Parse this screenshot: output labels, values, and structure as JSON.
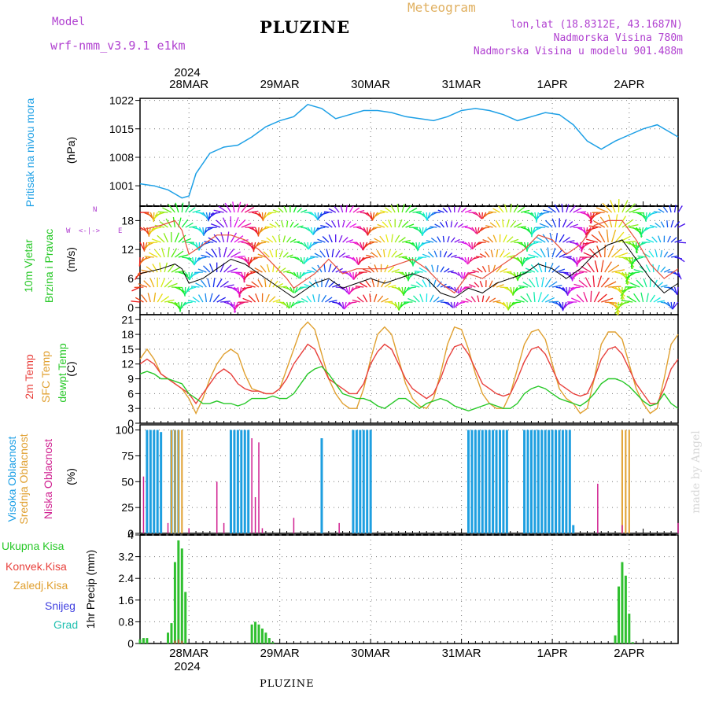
{
  "header": {
    "model_label": "Model",
    "model_name": "wrf-nmm_v3.9.1  e1km",
    "station": "PLUZINE",
    "meteogram_label": "Meteogram",
    "lonlat": "lon,lat (18.8312E, 43.1687N)",
    "elevation": "Nadmorska Visina 780m",
    "model_elevation": "Nadmorska Visina u modelu 901.488m",
    "top_year": "2024",
    "bottom_year": "2024",
    "footer_station": "PLUZINE",
    "watermark": "made by Angel"
  },
  "x_axis": {
    "day_labels": [
      "28MAR",
      "29MAR",
      "30MAR",
      "31MAR",
      "1APR",
      "2APR"
    ]
  },
  "panels": {
    "pressure": {
      "label": "Pritisak na nivou mora",
      "unit": "(hPa)"
    },
    "wind": {
      "label_line1": "10m Vjetar",
      "label_line2": "Brzina i Pravac",
      "unit": "(m/s)",
      "legend_n": "N",
      "legend_e": "E",
      "legend_w": "W",
      "legend_arrows": "<-|->"
    },
    "temp": {
      "label_2m": "2m Temp",
      "label_sfc": "SFC Temp",
      "label_dew": "dewpt Temp",
      "unit": "(C)"
    },
    "cloud": {
      "label_high": "Visoka Oblacnost",
      "label_mid": "Srednja Oblacnost",
      "label_low": "Niska Oblacnost",
      "unit": "(%)"
    },
    "precip": {
      "label_total": "Ukupna Kisa",
      "label_conv": "Konvek.Kisa",
      "label_frz": "Zaledj.Kisa",
      "label_snow": "Snijeg",
      "label_grad": "Grad",
      "unit": "1hr Precip (mm)"
    }
  },
  "colors": {
    "pressure": "#1ea0e6",
    "wind_speed": "#000000",
    "wind_gust": "#e8503c",
    "t2m": "#e8403c",
    "sfc": "#e0a030",
    "dew": "#28c828",
    "high_cloud": "#1e9fe0",
    "mid_cloud": "#e0a030",
    "low_cloud": "#d02090",
    "precip_total": "#30c030",
    "precip_conv": "#e83c3c",
    "label_cyan": "#1ea0e6",
    "label_green": "#28c828",
    "label_red": "#e8403c",
    "label_orange": "#e0a030",
    "label_purple": "#b040d0",
    "label_magenta": "#d02090",
    "label_blue": "#4040e0",
    "label_teal": "#20c0b0",
    "meteogram": "#e0b060"
  },
  "chart_data": [
    {
      "type": "line",
      "title": "",
      "ylabel": "Pritisak na nivou mora (hPa)",
      "ylim": [
        996,
        1022.5
      ],
      "yticks": [
        1001,
        1008,
        1015,
        1022
      ],
      "xlim": [
        0,
        154
      ],
      "x": [
        0,
        4,
        8,
        10,
        12,
        14,
        16,
        20,
        24,
        28,
        32,
        36,
        40,
        44,
        46,
        48,
        52,
        56,
        60,
        64,
        68,
        72,
        76,
        80,
        84,
        88,
        92,
        96,
        100,
        104,
        108,
        112,
        116,
        120,
        124,
        128,
        132,
        136,
        140,
        144,
        148,
        152,
        154
      ],
      "series": [
        {
          "values": [
            1001.5,
            1001,
            1000,
            999,
            998,
            998.5,
            1004,
            1009,
            1010.5,
            1011,
            1013,
            1015.5,
            1017,
            1018,
            1019.5,
            1021,
            1020,
            1017.5,
            1018.5,
            1019.5,
            1019.5,
            1019,
            1018,
            1017.5,
            1017,
            1018,
            1019.5,
            1020,
            1019.5,
            1018.5,
            1017,
            1018,
            1019,
            1018.5,
            1016,
            1012,
            1010,
            1012,
            1013.5,
            1015,
            1016,
            1014,
            1013
          ]
        }
      ]
    },
    {
      "type": "line",
      "title": "",
      "ylabel": "10m Vjetar Brzina i Pravac (m/s)",
      "ylim": [
        -1.5,
        21
      ],
      "yticks": [
        0,
        6,
        12,
        18
      ],
      "xlim": [
        0,
        154
      ],
      "x": [
        0,
        6,
        10,
        12,
        14,
        18,
        22,
        26,
        30,
        34,
        38,
        42,
        44,
        46,
        50,
        54,
        58,
        62,
        66,
        70,
        74,
        78,
        82,
        86,
        90,
        94,
        98,
        102,
        106,
        110,
        114,
        118,
        122,
        126,
        130,
        134,
        138,
        142,
        146,
        150,
        154
      ],
      "series": [
        {
          "values": [
            7,
            8,
            9,
            8,
            5,
            6,
            8,
            10,
            9,
            7,
            5,
            3,
            2,
            3,
            5,
            6,
            4,
            5,
            6,
            5,
            6,
            7,
            6,
            3,
            2,
            4,
            3,
            5,
            6,
            7,
            9,
            8,
            6,
            8,
            11,
            13,
            14,
            10,
            6,
            3,
            5
          ]
        },
        {
          "values": [
            16,
            17,
            18,
            16,
            11,
            13,
            15,
            15,
            14,
            12,
            9,
            6,
            4,
            5,
            7,
            10,
            7,
            8,
            8,
            8,
            9,
            10,
            8,
            5,
            3,
            7,
            6,
            8,
            10,
            12,
            15,
            14,
            11,
            13,
            17,
            18,
            18,
            14,
            9,
            6,
            8
          ]
        }
      ]
    },
    {
      "type": "line",
      "title": "",
      "ylabel": "Temp (C)",
      "ylim": [
        0,
        22
      ],
      "yticks": [
        0,
        3,
        6,
        9,
        12,
        15,
        18,
        21
      ],
      "xlim": [
        0,
        154
      ],
      "x": [
        0,
        2,
        4,
        6,
        8,
        10,
        12,
        14,
        16,
        18,
        20,
        22,
        24,
        26,
        28,
        30,
        32,
        34,
        36,
        38,
        40,
        42,
        44,
        46,
        48,
        50,
        52,
        54,
        56,
        58,
        60,
        62,
        64,
        66,
        68,
        70,
        72,
        74,
        76,
        78,
        80,
        82,
        84,
        86,
        88,
        90,
        92,
        94,
        96,
        98,
        100,
        102,
        104,
        106,
        108,
        110,
        112,
        114,
        116,
        118,
        120,
        122,
        124,
        126,
        128,
        130,
        132,
        134,
        136,
        138,
        140,
        142,
        144,
        146,
        148,
        150,
        152,
        154
      ],
      "series": [
        {
          "name": "2m Temp",
          "values": [
            12,
            13,
            12,
            10,
            9,
            8,
            7,
            6,
            4,
            6,
            8,
            10,
            11,
            10,
            8,
            7,
            6.5,
            6.5,
            6,
            6,
            7,
            9,
            12,
            14,
            16,
            15,
            12,
            9,
            8,
            7,
            6,
            6,
            8,
            12,
            14.5,
            16,
            15,
            12,
            9,
            7,
            6,
            5,
            6,
            9,
            13,
            15.5,
            16,
            14,
            11,
            8,
            7,
            6,
            5.5,
            6,
            9,
            12.5,
            15,
            15.5,
            14,
            11,
            8,
            7,
            6,
            5.5,
            6,
            9,
            13,
            15,
            15.5,
            14,
            11,
            8,
            6,
            4,
            4,
            7,
            11,
            13
          ]
        },
        {
          "name": "SFC Temp",
          "values": [
            13,
            15,
            13,
            10,
            9,
            8,
            7,
            5,
            2,
            5,
            9,
            12,
            14,
            15,
            14,
            10,
            7,
            6.5,
            6,
            6,
            7,
            11,
            15,
            19,
            20.5,
            19,
            14,
            9,
            6,
            4,
            3,
            3,
            7,
            13,
            18,
            19.5,
            18,
            13,
            8,
            5,
            3.5,
            3,
            5,
            10,
            16,
            19.5,
            19,
            15,
            10,
            6,
            4,
            3,
            3,
            6,
            11,
            16,
            18.5,
            19,
            17,
            12,
            7,
            5,
            4,
            2,
            3,
            9,
            16,
            18.5,
            18.5,
            17,
            12,
            7,
            4,
            2,
            3,
            9,
            16,
            18
          ]
        },
        {
          "name": "dewpt Temp",
          "values": [
            10,
            10.5,
            10,
            9,
            9,
            8.5,
            8,
            6,
            5,
            4,
            4,
            4.5,
            4,
            4,
            3.5,
            4,
            5,
            5,
            5,
            5.5,
            5,
            5,
            6,
            8,
            10,
            11,
            11.5,
            10,
            8,
            6,
            5.5,
            5,
            5,
            4.5,
            3.5,
            3,
            4,
            5,
            5,
            4,
            3,
            4,
            4.5,
            5,
            4.5,
            3.5,
            3,
            2.5,
            3,
            3.5,
            4,
            3.5,
            3,
            3,
            4,
            6,
            7,
            7.5,
            7,
            6,
            5,
            4.5,
            4,
            3.5,
            4.5,
            6,
            8,
            9,
            9,
            8.5,
            7.5,
            6,
            4.5,
            3.5,
            4,
            6,
            4,
            3
          ]
        }
      ]
    },
    {
      "type": "bar",
      "title": "",
      "ylabel": "Oblacnost (%)",
      "ylim": [
        0,
        105
      ],
      "yticks": [
        0,
        25,
        50,
        75,
        100
      ],
      "xlim": [
        0,
        154
      ],
      "series": [
        {
          "name": "Visoka Oblacnost",
          "x": [
            2,
            3,
            4,
            5,
            6,
            9,
            10,
            11,
            26,
            27,
            28,
            29,
            30,
            31,
            52,
            61,
            62,
            63,
            64,
            65,
            66,
            94,
            95,
            96,
            97,
            98,
            99,
            100,
            101,
            102,
            103,
            104,
            105,
            110,
            111,
            112,
            113,
            114,
            115,
            116,
            117,
            118,
            119,
            120,
            121,
            122,
            123,
            124
          ],
          "values": [
            100,
            100,
            100,
            100,
            98,
            100,
            100,
            100,
            100,
            100,
            100,
            100,
            100,
            100,
            92,
            100,
            100,
            100,
            100,
            100,
            100,
            100,
            100,
            100,
            100,
            100,
            100,
            100,
            100,
            100,
            100,
            100,
            100,
            100,
            100,
            100,
            100,
            100,
            100,
            100,
            100,
            100,
            100,
            100,
            100,
            100,
            100,
            8
          ]
        },
        {
          "name": "Srednja Oblacnost",
          "x": [
            9,
            10,
            11,
            12,
            138,
            139,
            140
          ],
          "values": [
            100,
            100,
            100,
            100,
            100,
            100,
            100
          ]
        },
        {
          "name": "Niska Oblacnost",
          "x": [
            1,
            8,
            14,
            22,
            24,
            32,
            33,
            34,
            35,
            44,
            57,
            131,
            138,
            154
          ],
          "values": [
            55,
            10,
            5,
            50,
            10,
            92,
            35,
            88,
            5,
            15,
            10,
            48,
            8,
            10
          ]
        }
      ]
    },
    {
      "type": "bar",
      "title": "",
      "ylabel": "1hr Precip (mm)",
      "ylim": [
        0,
        4
      ],
      "yticks": [
        0,
        0.8,
        1.6,
        2.4,
        3.2,
        4
      ],
      "xlim": [
        0,
        154
      ],
      "series": [
        {
          "name": "Ukupna Kisa",
          "x": [
            0,
            1,
            2,
            8,
            9,
            10,
            11,
            12,
            13,
            32,
            33,
            34,
            35,
            36,
            37,
            38,
            136,
            137,
            138,
            139,
            140,
            141
          ],
          "values": [
            0.15,
            0.2,
            0.2,
            0.4,
            0.75,
            3.0,
            3.8,
            3.5,
            1.9,
            0.7,
            0.8,
            0.7,
            0.55,
            0.4,
            0.2,
            0.05,
            0.3,
            2.1,
            3.0,
            2.5,
            1.1,
            0.05
          ]
        },
        {
          "name": "Konvek.Kisa",
          "x": [
            10,
            11,
            12
          ],
          "values": [
            0.1,
            0.15,
            0.1
          ]
        }
      ]
    }
  ]
}
